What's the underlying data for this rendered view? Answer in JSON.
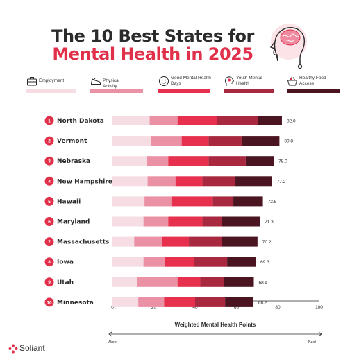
{
  "title_line1": "The 10 Best States for",
  "title_line2": "Mental Health in 2025",
  "legend": [
    {
      "label": "Employment",
      "color": "#f5dde3",
      "icon": "briefcase-icon"
    },
    {
      "label": "Physical Activity",
      "color": "#eb91a5",
      "icon": "sneaker-icon"
    },
    {
      "label": "Good Mental Health Days",
      "color": "#e6304e",
      "icon": "smiley-icon"
    },
    {
      "label": "Youth Mental Health",
      "color": "#a8283f",
      "icon": "head-icon"
    },
    {
      "label": "Healthy Food Access",
      "color": "#4a1420",
      "icon": "basket-icon"
    }
  ],
  "chart_data": {
    "type": "bar",
    "orientation": "horizontal",
    "stacked": true,
    "categories": [
      "North Dakota",
      "Vermont",
      "Nebraska",
      "New Hampshire",
      "Hawaii",
      "Maryland",
      "Massachusetts",
      "Iowa",
      "Utah",
      "Minnesota"
    ],
    "ranks": [
      "1",
      "2",
      "3",
      "4",
      "5",
      "6",
      "7",
      "8",
      "9",
      "10"
    ],
    "totals": [
      82.0,
      80.8,
      78.0,
      77.2,
      72.8,
      71.3,
      70.2,
      69.3,
      68.4,
      68.2
    ],
    "total_labels": [
      "82.0",
      "80.8",
      "78.0",
      "77.2",
      "72.8",
      "71.3",
      "70.2",
      "69.3",
      "68.4",
      "68.2"
    ],
    "series": [
      {
        "name": "Employment",
        "values": [
          18,
          18.5,
          16.5,
          17,
          15.5,
          15,
          10.5,
          15,
          12,
          12.5
        ]
      },
      {
        "name": "Physical Activity",
        "values": [
          13.5,
          15,
          10.5,
          13.5,
          13,
          12,
          13.5,
          10.5,
          19.5,
          12.5
        ]
      },
      {
        "name": "Good Mental Health Days",
        "values": [
          19,
          13,
          19.5,
          13,
          20,
          16.5,
          13,
          14,
          11,
          15
        ]
      },
      {
        "name": "Youth Mental Health",
        "values": [
          20,
          16,
          18,
          16,
          10,
          9.5,
          16,
          16,
          11.5,
          14.5
        ]
      },
      {
        "name": "Healthy Food Access",
        "values": [
          11.5,
          18.3,
          13.5,
          17.7,
          14.3,
          18.3,
          17.2,
          13.8,
          14.4,
          13.7
        ]
      }
    ],
    "xlabel": "Weighted Mental Health Points",
    "xticks": [
      0,
      20,
      40,
      60,
      80,
      100
    ],
    "xlim": [
      0,
      100
    ],
    "scale_left": "Worst",
    "scale_right": "Best"
  },
  "brand": "Soliant"
}
